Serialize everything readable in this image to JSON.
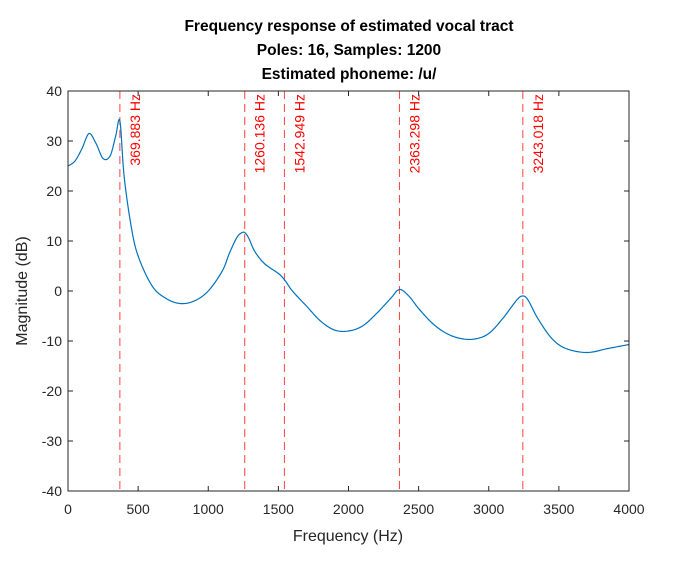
{
  "chart_data": {
    "type": "line",
    "title_lines": [
      "Frequency response of estimated vocal tract",
      "Poles: 16, Samples: 1200",
      "Estimated phoneme: /u/"
    ],
    "xlabel": "Frequency (Hz)",
    "ylabel": "Magnitude (dB)",
    "xlim": [
      0,
      4000
    ],
    "ylim": [
      -40,
      40
    ],
    "xticks": [
      0,
      500,
      1000,
      1500,
      2000,
      2500,
      3000,
      3500,
      4000
    ],
    "yticks": [
      -40,
      -30,
      -20,
      -10,
      0,
      10,
      20,
      30,
      40
    ],
    "grid": false,
    "line_color": "#0072bd",
    "formant_color": "#ff0000",
    "series": [
      {
        "x": [
          0,
          50,
          100,
          150,
          200,
          250,
          300,
          340,
          370,
          400,
          450,
          500,
          600,
          700,
          800,
          900,
          1000,
          1100,
          1150,
          1200,
          1230,
          1260,
          1290,
          1330,
          1400,
          1500,
          1545,
          1600,
          1700,
          1800,
          1900,
          2000,
          2100,
          2200,
          2300,
          2363,
          2430,
          2500,
          2600,
          2700,
          2800,
          2900,
          3000,
          3100,
          3200,
          3243,
          3280,
          3350,
          3450,
          3550,
          3700,
          3850,
          4000
        ],
        "y": [
          25,
          26,
          28.5,
          31.5,
          29.5,
          26.5,
          27,
          31,
          34,
          23,
          13,
          7,
          1,
          -1.5,
          -2.5,
          -2,
          0,
          4,
          7.5,
          10.5,
          11.5,
          11.7,
          10.5,
          8,
          5.5,
          3.5,
          2.2,
          0,
          -3,
          -6,
          -7.8,
          -8,
          -7,
          -4.5,
          -1.5,
          0.3,
          -1,
          -3.5,
          -6.5,
          -8.5,
          -9.5,
          -9.6,
          -8.5,
          -5.5,
          -1.8,
          -1,
          -1.8,
          -5.5,
          -9.5,
          -11.5,
          -12.3,
          -11.5,
          -10.7
        ]
      }
    ],
    "formants": [
      {
        "x": 369.883,
        "label": "369.883 Hz"
      },
      {
        "x": 1260.136,
        "label": "1260.136 Hz"
      },
      {
        "x": 1542.949,
        "label": "1542.949 Hz"
      },
      {
        "x": 2363.298,
        "label": "2363.298 Hz"
      },
      {
        "x": 3243.018,
        "label": "3243.018 Hz"
      }
    ]
  }
}
